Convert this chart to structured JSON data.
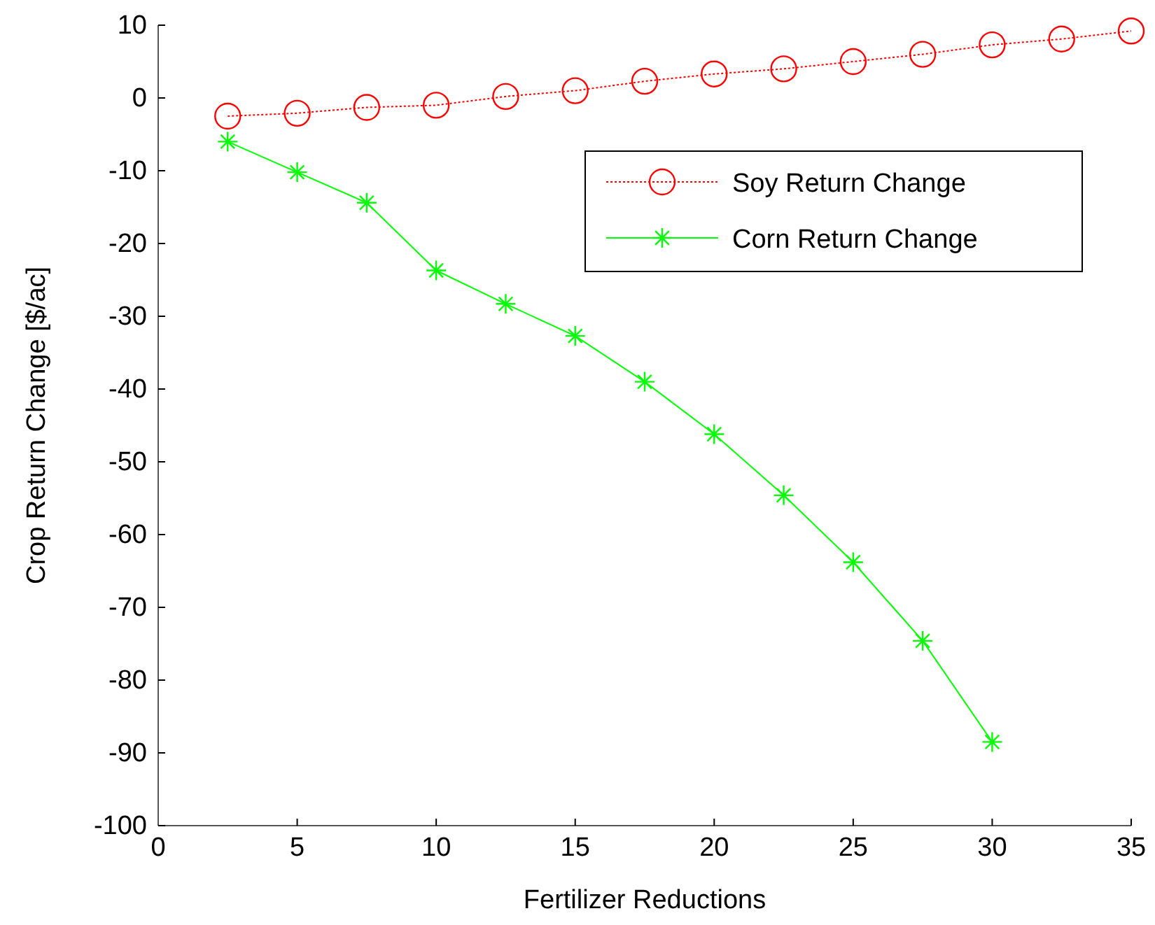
{
  "chart_data": {
    "type": "line",
    "xlabel": "Fertilizer Reductions",
    "ylabel": "Crop Return Change [$/ac]",
    "x": [
      2.5,
      5,
      7.5,
      10,
      12.5,
      15,
      17.5,
      20,
      22.5,
      25,
      27.5,
      30,
      32.5,
      35
    ],
    "series": [
      {
        "name": "Soy Return Change",
        "color": "#ff0000",
        "marker": "circle",
        "line_style": "dotted",
        "values": [
          -2.5,
          -2.1,
          -1.3,
          -1,
          0.2,
          1,
          2.3,
          3.3,
          4,
          5,
          6,
          7.3,
          8.1,
          9.2
        ]
      },
      {
        "name": "Corn Return Change",
        "color": "#00ff00",
        "marker": "cross",
        "line_style": "solid",
        "values": [
          -6,
          -10.2,
          -14.4,
          -23.7,
          -28.3,
          -32.7,
          -39,
          -46.2,
          -54.6,
          -63.8,
          -74.6,
          -88.5,
          null,
          null
        ]
      }
    ],
    "xlim": [
      0,
      35
    ],
    "xticks": [
      0,
      5,
      10,
      15,
      20,
      25,
      30,
      35
    ],
    "ylim": [
      -100,
      10
    ],
    "yticks": [
      -100,
      -90,
      -80,
      -70,
      -60,
      -50,
      -40,
      -30,
      -20,
      -10,
      0,
      10
    ],
    "grid": false,
    "legend": "top right"
  }
}
